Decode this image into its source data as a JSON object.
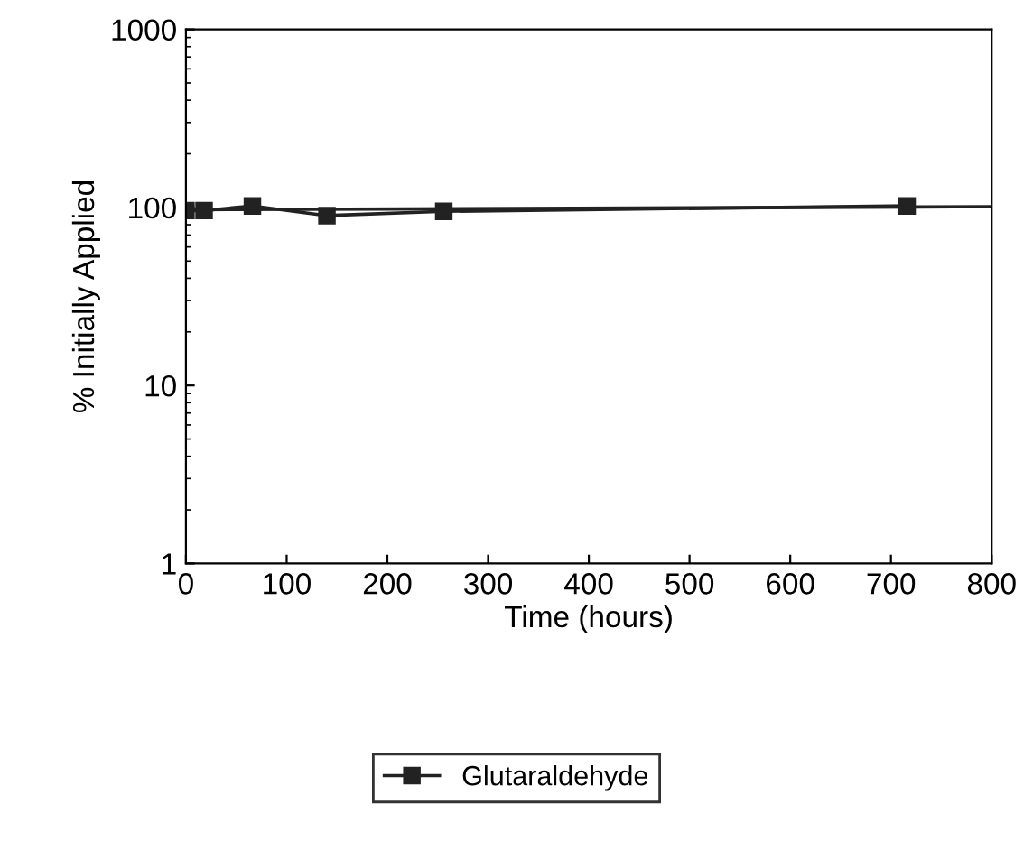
{
  "chart_data": {
    "type": "line",
    "xlabel": "Time (hours)",
    "ylabel": "% Initially Applied",
    "x": [
      0,
      18,
      66,
      140,
      256,
      716
    ],
    "series": [
      {
        "name": "Glutaraldehyde",
        "color": "#222222",
        "values": [
          96,
          96,
          102,
          90,
          95,
          102
        ],
        "marker": "square"
      },
      {
        "type": "line",
        "color": "#222222",
        "x": [
          0,
          800
        ],
        "values": [
          97,
          101
        ],
        "marker": "none"
      }
    ],
    "log": "y",
    "xlim": [
      0,
      800
    ],
    "xticks": [
      0,
      100,
      200,
      300,
      400,
      500,
      600,
      700,
      800
    ],
    "ylim": [
      1,
      1000
    ],
    "yticks": [
      1,
      10,
      100,
      1000
    ],
    "grid": false,
    "legend": "bottom"
  }
}
